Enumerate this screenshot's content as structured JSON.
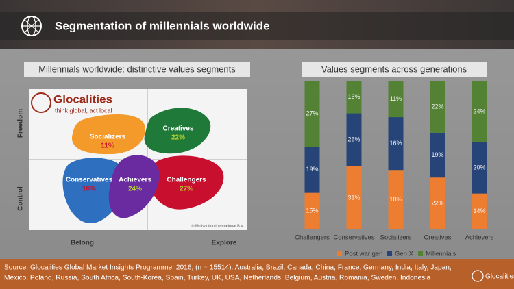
{
  "header": {
    "title": "Segmentation of millennials worldwide"
  },
  "segments_map": {
    "title": "Millennials worldwide: distinctive values segments",
    "logo": {
      "name": "Glocalities",
      "tagline": "think global, act local"
    },
    "axes": {
      "top": "Freedom",
      "bottom": "Control",
      "left": "Belong",
      "right": "Explore"
    },
    "segments": [
      {
        "name": "Socializers",
        "share": "11%"
      },
      {
        "name": "Creatives",
        "share": "22%"
      },
      {
        "name": "Conservatives",
        "share": "16%"
      },
      {
        "name": "Achievers",
        "share": "24%"
      },
      {
        "name": "Challengers",
        "share": "27%"
      }
    ],
    "credit": "© Motivaction International B.V."
  },
  "chart_data": {
    "type": "stacked_bar_100",
    "title": "Values segments across generations",
    "categories": [
      "Challengers",
      "Conservatives",
      "Socializers",
      "Creatives",
      "Achievers"
    ],
    "series": [
      {
        "name": "Post war gen",
        "color": "#ed7d31",
        "values": [
          15,
          31,
          18,
          22,
          14
        ],
        "value_labels": [
          "15%",
          "31%",
          "18%",
          "22%",
          "14%"
        ]
      },
      {
        "name": "Gen X",
        "color": "#264478",
        "values": [
          19,
          26,
          16,
          19,
          20
        ],
        "value_labels": [
          "19%",
          "26%",
          "16%",
          "19%",
          "20%"
        ]
      },
      {
        "name": "Millennials",
        "color": "#548235",
        "values": [
          27,
          16,
          11,
          22,
          24
        ],
        "value_labels": [
          "27%",
          "16%",
          "11%",
          "22%",
          "24%"
        ]
      }
    ],
    "legend": "bottom"
  },
  "footer": {
    "source": "Source: Glocalities Global Market Insights Programme, 2016, (n = 15514). Australia, Brazil, Canada, China, France, Germany, India, Italy, Japan,",
    "source_2": "Mexico, Poland, Russia, South Africa, South-Korea, Spain, Turkey, UK, USA, Netherlands, Belgium, Austria, Romania, Sweden, Indonesia",
    "logo": "Glocalities"
  }
}
